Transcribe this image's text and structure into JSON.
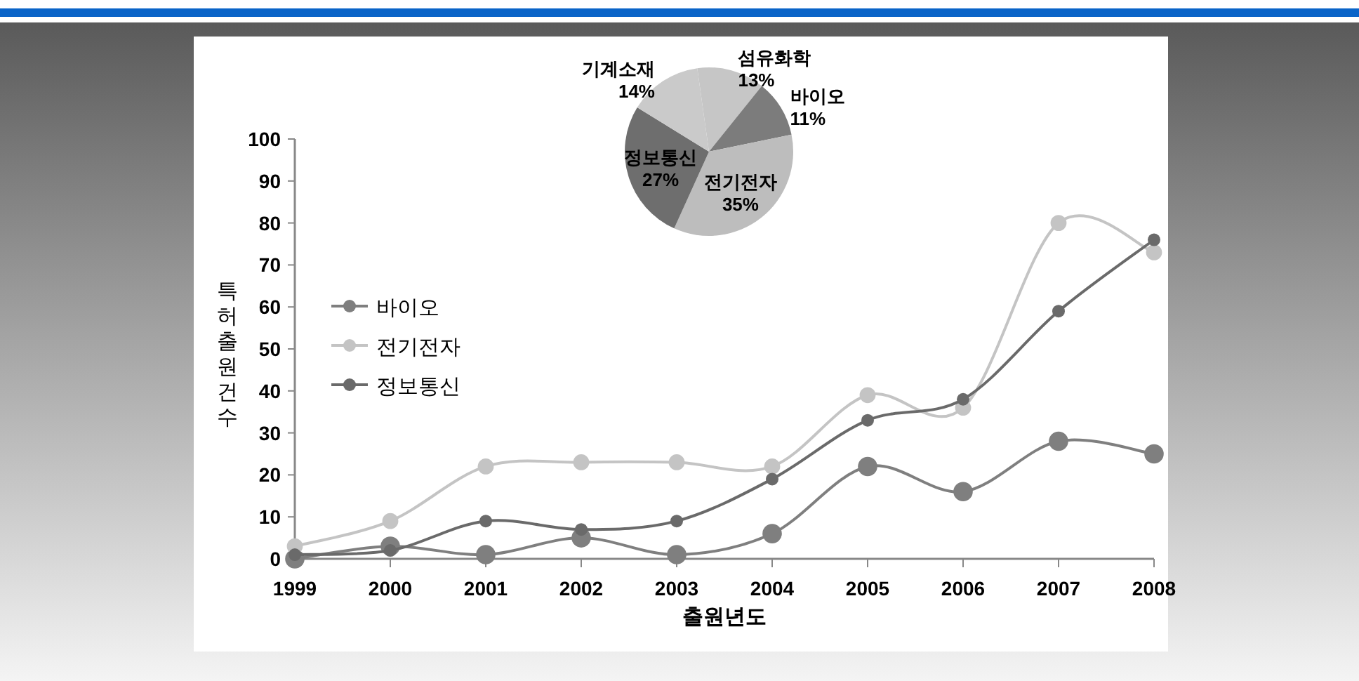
{
  "chart_data": [
    {
      "type": "line",
      "xlabel": "출원년도",
      "ylabel": "특허출원건수",
      "categories": [
        "1999",
        "2000",
        "2001",
        "2002",
        "2003",
        "2004",
        "2005",
        "2006",
        "2007",
        "2008"
      ],
      "series": [
        {
          "name": "바이오",
          "color": "#7f7f7f",
          "values": [
            0,
            3,
            1,
            5,
            1,
            6,
            22,
            16,
            28,
            25
          ]
        },
        {
          "name": "전기전자",
          "color": "#c4c4c4",
          "values": [
            3,
            9,
            22,
            23,
            23,
            22,
            39,
            36,
            80,
            73
          ]
        },
        {
          "name": "정보통신",
          "color": "#6a6a6a",
          "values": [
            1,
            2,
            9,
            7,
            9,
            19,
            33,
            38,
            59,
            76
          ]
        }
      ],
      "ylim": [
        0,
        100
      ],
      "yticks": [
        0,
        10,
        20,
        30,
        40,
        50,
        60,
        70,
        80,
        90,
        100
      ],
      "grid": false,
      "legend": "left",
      "marker": "circle",
      "line_style": "solid"
    },
    {
      "type": "pie",
      "categories": [
        "섬유화학",
        "바이오",
        "전기전자",
        "정보통신",
        "기계소재"
      ],
      "values": [
        13,
        11,
        35,
        27,
        14
      ],
      "colors": [
        "#c6c6c6",
        "#7c7c7c",
        "#bdbdbd",
        "#6e6e6e",
        "#cacaca"
      ],
      "value_labels": [
        "13%",
        "11%",
        "35%",
        "27%",
        "14%"
      ]
    }
  ]
}
